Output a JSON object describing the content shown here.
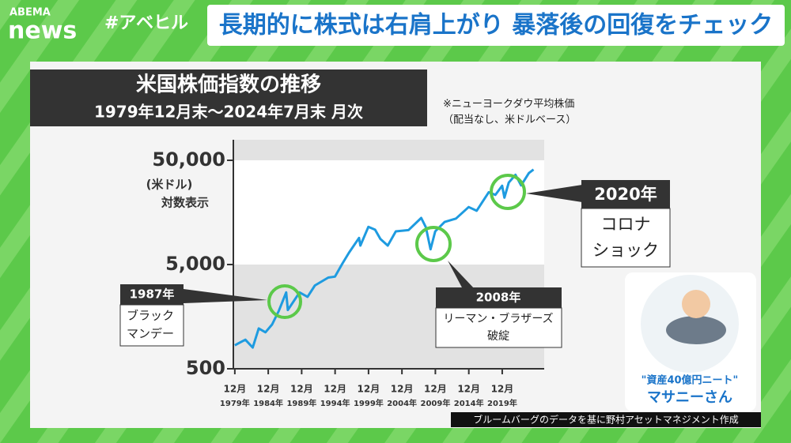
{
  "header": {
    "logo_top": "ABEMA",
    "logo_bottom": "news",
    "hashtag": "#アベヒル",
    "headline": "長期的に株式は右肩上がり 暴落後の回復をチェック"
  },
  "chart_data": {
    "type": "line",
    "title": "米国株価指数の推移",
    "subtitle": "1979年12月末～2024年7月末 月次",
    "note": [
      "※ニューヨークダウ平均株価",
      "（配当なし、米ドルベース）"
    ],
    "y_label": [
      "(米ドル)",
      "対数表示"
    ],
    "log_scale": true,
    "color": "#1e9be0",
    "x": [
      1979.92,
      1980.5,
      1981.5,
      1982.6,
      1983.5,
      1984.5,
      1985.5,
      1986.5,
      1987.6,
      1987.85,
      1989.6,
      1990.8,
      1991.9,
      1993.9,
      1994.9,
      1996.0,
      1997.0,
      1998.5,
      1998.7,
      1999.9,
      2000.9,
      2001.7,
      2002.8,
      2004.0,
      2005.9,
      2007.8,
      2008.5,
      2009.2,
      2009.9,
      2011.3,
      2013.0,
      2014.9,
      2016.1,
      2017.9,
      2018.9,
      2019.9,
      2020.25,
      2020.9,
      2021.9,
      2022.75,
      2023.9,
      2024.6
    ],
    "values": [
      839,
      880,
      950,
      800,
      1220,
      1120,
      1330,
      1800,
      2700,
      1830,
      2700,
      2450,
      3150,
      3750,
      3830,
      5100,
      6500,
      9000,
      7600,
      11500,
      10800,
      8800,
      7600,
      10400,
      10700,
      14000,
      11400,
      7000,
      10400,
      12800,
      13800,
      17800,
      16400,
      24700,
      23300,
      28500,
      21900,
      30600,
      36300,
      28700,
      37700,
      40800
    ],
    "xlim": [
      1979.7,
      2026.2
    ],
    "ylim": [
      500,
      78700
    ],
    "yticks": [
      500,
      {
        "value": 5000,
        "label": "5,000"
      },
      {
        "value": 50000,
        "label": "50,000"
      }
    ],
    "xtick_month": "12月",
    "xticks": [
      {
        "value": 1979.92,
        "label": "1979年"
      },
      {
        "value": 1984.92,
        "label": "1984年"
      },
      {
        "value": 1989.92,
        "label": "1989年"
      },
      {
        "value": 1994.92,
        "label": "1994年"
      },
      {
        "value": 1999.92,
        "label": "1999年"
      },
      {
        "value": 2004.92,
        "label": "2004年"
      },
      {
        "value": 2009.92,
        "label": "2009年"
      },
      {
        "value": 2014.92,
        "label": "2014年"
      },
      {
        "value": 2019.92,
        "label": "2019年"
      }
    ],
    "annotations": [
      {
        "label": "1987年",
        "text": [
          "ブラック",
          "マンデー"
        ]
      },
      {
        "label": "2008年",
        "text": [
          "リーマン・ブラザーズ",
          "破綻"
        ]
      },
      {
        "label": "2020年",
        "text": [
          "コロナ",
          "ショック"
        ]
      }
    ]
  },
  "guest": {
    "caption": "\"資産40億円ニート\"",
    "name": "マサニーさん"
  },
  "credit": "ブルームバーグのデータを基に野村アセットマネジメント作成"
}
